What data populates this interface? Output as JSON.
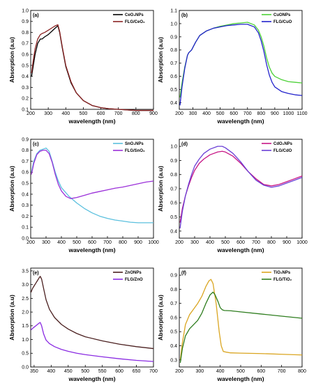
{
  "chart_data": [
    {
      "panel": "(a)",
      "type": "line",
      "xlabel": "wavelength (nm)",
      "ylabel": "Absorption (a.u)",
      "xlim": [
        200,
        900
      ],
      "ylim": [
        0.1,
        1.0
      ],
      "xticks": [
        200,
        300,
        400,
        500,
        600,
        700,
        800,
        900
      ],
      "xtick_labels": [
        "200",
        "300",
        "400",
        "500",
        "600",
        "700",
        "800",
        "900"
      ],
      "yticks": [
        0.1,
        0.2,
        0.3,
        0.4,
        0.5,
        0.6,
        0.7,
        0.8,
        0.9,
        1.0
      ],
      "ytick_labels": [
        "0.1",
        "0.2",
        "0.3",
        "0.4",
        "0.5",
        "0.6",
        "0.7",
        "0.8",
        "0.9",
        "1.0"
      ],
      "legend_position": "top-right",
      "series": [
        {
          "name": "CeO₂NPs",
          "color": "#000000",
          "x": [
            205,
            215,
            225,
            240,
            255,
            265,
            280,
            300,
            320,
            340,
            355,
            365,
            380,
            400,
            430,
            460,
            500,
            550,
            600,
            650,
            700,
            750,
            800,
            850,
            900
          ],
          "y": [
            0.4,
            0.5,
            0.6,
            0.7,
            0.74,
            0.74,
            0.76,
            0.78,
            0.81,
            0.84,
            0.86,
            0.8,
            0.66,
            0.49,
            0.34,
            0.25,
            0.18,
            0.135,
            0.115,
            0.105,
            0.1,
            0.095,
            0.09,
            0.09,
            0.09
          ]
        },
        {
          "name": "FLG/CeO₂",
          "color": "#8B2323",
          "x": [
            205,
            215,
            225,
            240,
            255,
            265,
            280,
            300,
            320,
            340,
            355,
            365,
            380,
            400,
            430,
            460,
            500,
            550,
            600,
            650,
            700,
            750,
            800,
            850,
            900
          ],
          "y": [
            0.43,
            0.55,
            0.65,
            0.74,
            0.78,
            0.79,
            0.8,
            0.82,
            0.84,
            0.86,
            0.87,
            0.81,
            0.67,
            0.5,
            0.35,
            0.25,
            0.18,
            0.135,
            0.115,
            0.105,
            0.1,
            0.095,
            0.09,
            0.09,
            0.09
          ]
        }
      ]
    },
    {
      "panel": "(b)",
      "type": "line",
      "xlabel": "wavelength (nm)",
      "ylabel": "Absorption (a.u)",
      "xlim": [
        200,
        1100
      ],
      "ylim": [
        0.35,
        1.1
      ],
      "xticks": [
        200,
        300,
        400,
        500,
        600,
        700,
        800,
        900,
        1000,
        1100
      ],
      "xtick_labels": [
        "200",
        "300",
        "400",
        "500",
        "600",
        "700",
        "800",
        "900",
        "1000",
        "1100"
      ],
      "yticks": [
        0.4,
        0.5,
        0.6,
        0.7,
        0.8,
        0.9,
        1.0,
        1.1
      ],
      "ytick_labels": [
        "0.4",
        "0.5",
        "0.6",
        "0.7",
        "0.8",
        "0.9",
        "1.0",
        "1.1"
      ],
      "legend_position": "top-right",
      "series": [
        {
          "name": "CuONPs",
          "color": "#4CD137",
          "x": [
            205,
            220,
            240,
            260,
            270,
            290,
            320,
            350,
            400,
            450,
            500,
            550,
            600,
            650,
            700,
            750,
            780,
            800,
            820,
            840,
            860,
            880,
            900,
            950,
            1000,
            1050,
            1100
          ],
          "y": [
            0.44,
            0.55,
            0.67,
            0.76,
            0.78,
            0.8,
            0.86,
            0.91,
            0.945,
            0.965,
            0.98,
            0.99,
            1.0,
            1.005,
            1.01,
            0.99,
            0.95,
            0.9,
            0.83,
            0.74,
            0.67,
            0.625,
            0.6,
            0.575,
            0.56,
            0.555,
            0.55
          ]
        },
        {
          "name": "FLG/CuO",
          "color": "#2222CC",
          "x": [
            205,
            220,
            240,
            260,
            270,
            290,
            320,
            350,
            400,
            450,
            500,
            550,
            600,
            650,
            700,
            750,
            780,
            800,
            820,
            840,
            860,
            880,
            900,
            950,
            1000,
            1050,
            1100
          ],
          "y": [
            0.38,
            0.52,
            0.66,
            0.76,
            0.78,
            0.8,
            0.86,
            0.91,
            0.945,
            0.965,
            0.975,
            0.985,
            0.99,
            0.995,
            0.995,
            0.975,
            0.93,
            0.87,
            0.79,
            0.69,
            0.61,
            0.555,
            0.52,
            0.485,
            0.47,
            0.46,
            0.455
          ]
        }
      ]
    },
    {
      "panel": "(c)",
      "type": "line",
      "xlabel": "wavelength (nm)",
      "ylabel": "Absorption (a.u)",
      "xlim": [
        200,
        1000
      ],
      "ylim": [
        0.0,
        0.9
      ],
      "xticks": [
        200,
        300,
        400,
        500,
        600,
        700,
        800,
        900,
        1000
      ],
      "xtick_labels": [
        "200",
        "300",
        "400",
        "500",
        "600",
        "700",
        "800",
        "900",
        "1000"
      ],
      "yticks": [
        0.0,
        0.1,
        0.2,
        0.3,
        0.4,
        0.5,
        0.6,
        0.7,
        0.8,
        0.9
      ],
      "ytick_labels": [
        "0.0",
        "0.1",
        "0.2",
        "0.3",
        "0.4",
        "0.5",
        "0.6",
        "0.7",
        "0.8",
        "0.9"
      ],
      "legend_position": "top-right",
      "series": [
        {
          "name": "SnO₂NPs",
          "color": "#5BC0DE",
          "x": [
            205,
            220,
            240,
            260,
            280,
            300,
            320,
            340,
            360,
            380,
            400,
            450,
            500,
            550,
            600,
            650,
            700,
            750,
            800,
            850,
            900,
            950,
            1000
          ],
          "y": [
            0.6,
            0.7,
            0.77,
            0.8,
            0.81,
            0.82,
            0.79,
            0.7,
            0.6,
            0.52,
            0.46,
            0.38,
            0.32,
            0.27,
            0.23,
            0.2,
            0.18,
            0.165,
            0.155,
            0.145,
            0.14,
            0.14,
            0.14
          ]
        },
        {
          "name": "FLG/SnO₂",
          "color": "#9B30D9",
          "x": [
            205,
            220,
            240,
            260,
            280,
            300,
            320,
            340,
            360,
            380,
            400,
            430,
            460,
            500,
            550,
            600,
            650,
            700,
            750,
            800,
            850,
            900,
            950,
            1000
          ],
          "y": [
            0.58,
            0.68,
            0.76,
            0.79,
            0.8,
            0.8,
            0.77,
            0.69,
            0.58,
            0.49,
            0.43,
            0.38,
            0.36,
            0.37,
            0.39,
            0.41,
            0.425,
            0.44,
            0.455,
            0.465,
            0.48,
            0.495,
            0.51,
            0.52
          ]
        }
      ]
    },
    {
      "panel": "(d)",
      "type": "line",
      "xlabel": "wavelength (nm)",
      "ylabel": "Absorption (a.u)",
      "xlim": [
        200,
        1000
      ],
      "ylim": [
        0.35,
        1.05
      ],
      "xticks": [
        200,
        300,
        400,
        500,
        600,
        700,
        800,
        900,
        1000
      ],
      "xtick_labels": [
        "200",
        "300",
        "400",
        "500",
        "600",
        "700",
        "800",
        "900",
        "1000"
      ],
      "yticks": [
        0.4,
        0.5,
        0.6,
        0.7,
        0.8,
        0.9,
        1.0
      ],
      "ytick_labels": [
        "0.4",
        "0.5",
        "0.6",
        "0.7",
        "0.8",
        "0.9",
        "1.0"
      ],
      "legend_position": "top-right",
      "series": [
        {
          "name": "CdO₂NPs",
          "color": "#C71585",
          "x": [
            205,
            220,
            240,
            260,
            280,
            300,
            330,
            360,
            400,
            450,
            480,
            500,
            550,
            600,
            650,
            700,
            750,
            800,
            850,
            900,
            950,
            1000
          ],
          "y": [
            0.46,
            0.56,
            0.65,
            0.72,
            0.78,
            0.83,
            0.88,
            0.91,
            0.94,
            0.96,
            0.965,
            0.96,
            0.93,
            0.88,
            0.82,
            0.77,
            0.73,
            0.72,
            0.73,
            0.75,
            0.77,
            0.79
          ]
        },
        {
          "name": "FLG/CdO",
          "color": "#6A3FD6",
          "x": [
            205,
            220,
            240,
            260,
            280,
            300,
            330,
            360,
            400,
            450,
            480,
            500,
            550,
            600,
            650,
            700,
            750,
            800,
            850,
            900,
            950,
            1000
          ],
          "y": [
            0.42,
            0.54,
            0.65,
            0.73,
            0.8,
            0.86,
            0.91,
            0.95,
            0.98,
            1.0,
            1.0,
            0.99,
            0.95,
            0.89,
            0.82,
            0.76,
            0.725,
            0.71,
            0.72,
            0.74,
            0.76,
            0.78
          ]
        }
      ]
    },
    {
      "panel": "(e)",
      "type": "line",
      "xlabel": "wavelength (nm)",
      "ylabel": "Absorption (a.u)",
      "xlim": [
        340,
        700
      ],
      "ylim": [
        0.0,
        3.6
      ],
      "xticks": [
        350,
        400,
        450,
        500,
        550,
        600,
        650,
        700
      ],
      "xtick_labels": [
        "350",
        "400",
        "450",
        "500",
        "550",
        "600",
        "650",
        "700"
      ],
      "yticks": [
        0.0,
        0.5,
        1.0,
        1.5,
        2.0,
        2.5,
        3.0,
        3.5
      ],
      "ytick_labels": [
        "0.0",
        "0.5",
        "1.0",
        "1.5",
        "2.0",
        "2.5",
        "3.0",
        "3.5"
      ],
      "legend_position": "top-right",
      "series": [
        {
          "name": "ZnONPs",
          "color": "#4A1F1F",
          "x": [
            341,
            345,
            350,
            355,
            360,
            365,
            368,
            372,
            378,
            385,
            395,
            410,
            430,
            450,
            475,
            500,
            550,
            600,
            650,
            700
          ],
          "y": [
            2.72,
            2.85,
            2.95,
            3.05,
            3.15,
            3.25,
            3.3,
            3.2,
            2.85,
            2.45,
            2.1,
            1.8,
            1.55,
            1.38,
            1.22,
            1.1,
            0.95,
            0.83,
            0.74,
            0.67
          ]
        },
        {
          "name": "FLG/ZnO",
          "color": "#8A2BE2",
          "x": [
            341,
            345,
            350,
            355,
            360,
            365,
            368,
            372,
            378,
            385,
            395,
            410,
            430,
            450,
            475,
            500,
            550,
            600,
            650,
            700
          ],
          "y": [
            1.35,
            1.4,
            1.45,
            1.5,
            1.55,
            1.6,
            1.62,
            1.5,
            1.2,
            0.98,
            0.85,
            0.74,
            0.64,
            0.57,
            0.5,
            0.45,
            0.37,
            0.3,
            0.24,
            0.2
          ]
        }
      ]
    },
    {
      "panel": "(f)",
      "type": "line",
      "xlabel": "wavelength (nm)",
      "ylabel": "Absorption (a.u)",
      "xlim": [
        200,
        800
      ],
      "ylim": [
        0.25,
        0.95
      ],
      "xticks": [
        200,
        300,
        400,
        500,
        600,
        700,
        800
      ],
      "xtick_labels": [
        "200",
        "300",
        "400",
        "500",
        "600",
        "700",
        "800"
      ],
      "yticks": [
        0.3,
        0.4,
        0.5,
        0.6,
        0.7,
        0.8,
        0.9
      ],
      "ytick_labels": [
        "0.3",
        "0.4",
        "0.5",
        "0.6",
        "0.7",
        "0.8",
        "0.9"
      ],
      "legend_position": "top-right",
      "series": [
        {
          "name": "TiO₂NPs",
          "color": "#DAA520",
          "x": [
            205,
            215,
            230,
            250,
            270,
            290,
            310,
            330,
            345,
            355,
            365,
            380,
            395,
            405,
            415,
            430,
            450,
            500,
            600,
            700,
            800
          ],
          "y": [
            0.3,
            0.42,
            0.55,
            0.62,
            0.66,
            0.7,
            0.75,
            0.82,
            0.86,
            0.87,
            0.84,
            0.7,
            0.5,
            0.4,
            0.36,
            0.355,
            0.35,
            0.348,
            0.345,
            0.34,
            0.335
          ]
        },
        {
          "name": "FLG/TiO₂",
          "color": "#2E7D1E",
          "x": [
            205,
            215,
            230,
            250,
            270,
            290,
            310,
            330,
            350,
            365,
            375,
            390,
            400,
            410,
            420,
            450,
            500,
            600,
            700,
            800
          ],
          "y": [
            0.28,
            0.38,
            0.47,
            0.52,
            0.55,
            0.58,
            0.63,
            0.7,
            0.76,
            0.78,
            0.76,
            0.71,
            0.67,
            0.655,
            0.65,
            0.648,
            0.64,
            0.625,
            0.61,
            0.595
          ]
        }
      ]
    }
  ]
}
